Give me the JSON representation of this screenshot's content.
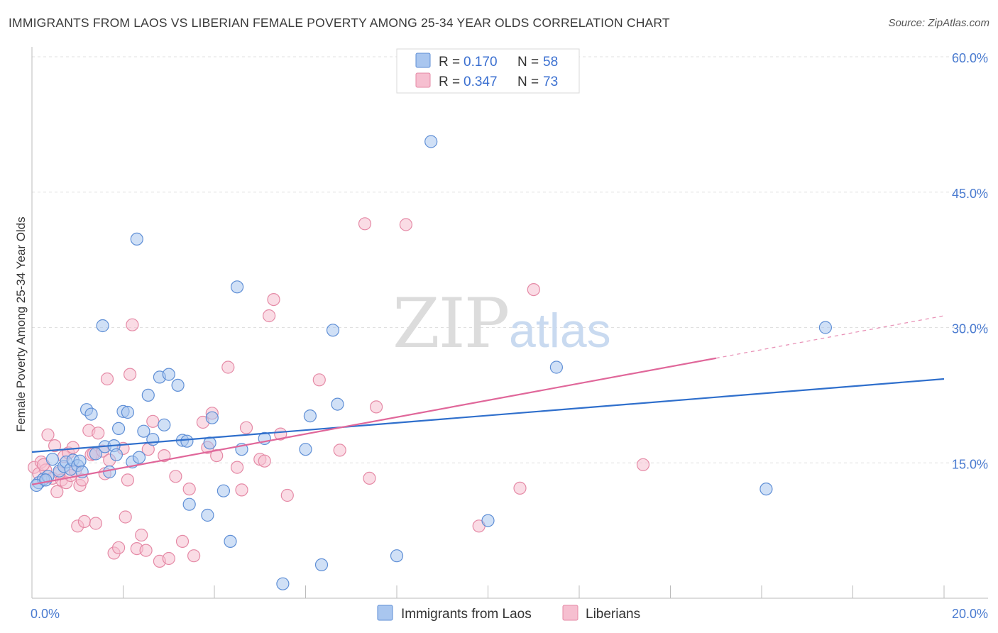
{
  "title": "IMMIGRANTS FROM LAOS VS LIBERIAN FEMALE POVERTY AMONG 25-34 YEAR OLDS CORRELATION CHART",
  "source": "Source: ZipAtlas.com",
  "watermark": {
    "zip": "ZIP",
    "atlas": "atlas"
  },
  "colors": {
    "blue_fill": "#a9c6ef",
    "blue_stroke": "#5f8fd6",
    "blue_line": "#2f6fcc",
    "pink_fill": "#f6bfd0",
    "pink_stroke": "#e58aa6",
    "pink_line": "#e0679a",
    "axis_text": "#4a7bd0",
    "grid": "#e0e0e0"
  },
  "legend": {
    "rows": [
      {
        "r_label": "R =",
        "r_value": "0.170",
        "n_label": "N =",
        "n_value": "58"
      },
      {
        "r_label": "R =",
        "r_value": "0.347",
        "n_label": "N =",
        "n_value": "73"
      }
    ]
  },
  "bottom_legend": [
    "Immigrants from Laos",
    "Liberians"
  ],
  "chart_data": {
    "type": "scatter",
    "title": "IMMIGRANTS FROM LAOS VS LIBERIAN FEMALE POVERTY AMONG 25-34 YEAR OLDS CORRELATION CHART",
    "xlabel": "",
    "ylabel": "Female Poverty Among 25-34 Year Olds",
    "xlim": [
      0,
      20
    ],
    "ylim": [
      0,
      60
    ],
    "x_tick_labels": [
      "0.0%",
      "20.0%"
    ],
    "y_tick_labels": [
      "15.0%",
      "30.0%",
      "45.0%",
      "60.0%"
    ],
    "y_ticks": [
      15,
      30,
      45,
      60
    ],
    "grid": true,
    "legend_position": "top-center",
    "series": [
      {
        "name": "Immigrants from Laos",
        "color": "#5f8fd6",
        "r": 0.17,
        "n": 58,
        "trend": {
          "x": [
            0,
            20
          ],
          "y": [
            16.2,
            24.3
          ]
        },
        "points": [
          [
            0.15,
            12.8
          ],
          [
            0.25,
            13.2
          ],
          [
            0.35,
            13.5
          ],
          [
            0.45,
            15.4
          ],
          [
            0.6,
            14.1
          ],
          [
            0.7,
            14.6
          ],
          [
            0.75,
            15.1
          ],
          [
            0.85,
            14.3
          ],
          [
            0.9,
            15.3
          ],
          [
            1.0,
            14.7
          ],
          [
            1.05,
            15.2
          ],
          [
            1.1,
            14.0
          ],
          [
            1.2,
            20.9
          ],
          [
            1.3,
            20.4
          ],
          [
            1.4,
            16.0
          ],
          [
            1.55,
            30.2
          ],
          [
            1.6,
            16.8
          ],
          [
            1.7,
            14.0
          ],
          [
            1.8,
            16.9
          ],
          [
            1.85,
            15.9
          ],
          [
            1.9,
            18.8
          ],
          [
            2.0,
            20.7
          ],
          [
            2.1,
            20.6
          ],
          [
            2.2,
            15.1
          ],
          [
            2.3,
            39.8
          ],
          [
            2.35,
            15.6
          ],
          [
            2.45,
            18.5
          ],
          [
            2.55,
            22.5
          ],
          [
            2.65,
            17.6
          ],
          [
            2.8,
            24.5
          ],
          [
            2.9,
            19.2
          ],
          [
            3.0,
            24.8
          ],
          [
            3.2,
            23.6
          ],
          [
            3.3,
            17.5
          ],
          [
            3.4,
            17.4
          ],
          [
            3.45,
            10.4
          ],
          [
            3.85,
            9.2
          ],
          [
            3.9,
            17.2
          ],
          [
            3.95,
            20.0
          ],
          [
            4.2,
            11.9
          ],
          [
            4.35,
            6.3
          ],
          [
            4.5,
            34.5
          ],
          [
            4.6,
            16.5
          ],
          [
            5.1,
            17.7
          ],
          [
            5.5,
            1.6
          ],
          [
            6.0,
            16.5
          ],
          [
            6.1,
            20.2
          ],
          [
            6.35,
            3.7
          ],
          [
            6.6,
            29.7
          ],
          [
            6.7,
            21.5
          ],
          [
            8.0,
            4.7
          ],
          [
            8.75,
            50.6
          ],
          [
            10.0,
            8.6
          ],
          [
            11.5,
            25.6
          ],
          [
            16.1,
            12.1
          ],
          [
            17.4,
            30.0
          ],
          [
            0.1,
            12.5
          ],
          [
            0.3,
            13.1
          ]
        ]
      },
      {
        "name": "Liberians",
        "color": "#e58aa6",
        "r": 0.347,
        "n": 73,
        "trend": {
          "x": [
            0,
            15
          ],
          "y": [
            12.6,
            26.6
          ]
        },
        "trend_dashed": {
          "x": [
            15,
            20
          ],
          "y": [
            26.6,
            31.3
          ]
        },
        "points": [
          [
            0.05,
            14.5
          ],
          [
            0.15,
            13.8
          ],
          [
            0.2,
            15.1
          ],
          [
            0.3,
            14.2
          ],
          [
            0.35,
            18.1
          ],
          [
            0.45,
            13.3
          ],
          [
            0.5,
            16.9
          ],
          [
            0.55,
            11.8
          ],
          [
            0.6,
            13.9
          ],
          [
            0.65,
            13.1
          ],
          [
            0.7,
            15.7
          ],
          [
            0.75,
            12.8
          ],
          [
            0.8,
            16.1
          ],
          [
            0.85,
            13.6
          ],
          [
            0.9,
            16.7
          ],
          [
            0.95,
            14.1
          ],
          [
            1.0,
            8.0
          ],
          [
            1.05,
            12.5
          ],
          [
            1.1,
            13.1
          ],
          [
            1.15,
            8.5
          ],
          [
            1.25,
            18.6
          ],
          [
            1.3,
            15.9
          ],
          [
            1.35,
            16.0
          ],
          [
            1.4,
            8.3
          ],
          [
            1.45,
            18.3
          ],
          [
            1.55,
            16.3
          ],
          [
            1.6,
            13.8
          ],
          [
            1.65,
            24.3
          ],
          [
            1.7,
            15.3
          ],
          [
            1.8,
            5.0
          ],
          [
            1.9,
            5.6
          ],
          [
            2.0,
            16.6
          ],
          [
            2.05,
            9.0
          ],
          [
            2.1,
            13.1
          ],
          [
            2.15,
            24.8
          ],
          [
            2.2,
            30.3
          ],
          [
            2.3,
            5.5
          ],
          [
            2.4,
            7.0
          ],
          [
            2.5,
            5.3
          ],
          [
            2.55,
            16.5
          ],
          [
            2.65,
            19.6
          ],
          [
            2.8,
            4.1
          ],
          [
            2.9,
            15.8
          ],
          [
            3.0,
            4.4
          ],
          [
            3.15,
            13.5
          ],
          [
            3.3,
            6.3
          ],
          [
            3.45,
            12.1
          ],
          [
            3.55,
            4.7
          ],
          [
            3.75,
            19.5
          ],
          [
            3.85,
            16.7
          ],
          [
            3.95,
            20.5
          ],
          [
            4.05,
            15.8
          ],
          [
            4.3,
            25.6
          ],
          [
            4.5,
            14.5
          ],
          [
            4.6,
            12.0
          ],
          [
            4.7,
            18.9
          ],
          [
            5.0,
            15.4
          ],
          [
            5.1,
            15.2
          ],
          [
            5.2,
            31.3
          ],
          [
            5.3,
            33.1
          ],
          [
            5.45,
            18.2
          ],
          [
            5.6,
            11.4
          ],
          [
            6.3,
            24.2
          ],
          [
            6.75,
            16.4
          ],
          [
            7.3,
            41.5
          ],
          [
            7.4,
            13.3
          ],
          [
            7.55,
            21.2
          ],
          [
            8.2,
            41.4
          ],
          [
            9.8,
            8.0
          ],
          [
            10.7,
            12.2
          ],
          [
            11.0,
            34.2
          ],
          [
            13.4,
            14.8
          ],
          [
            0.25,
            14.8
          ]
        ]
      }
    ]
  }
}
